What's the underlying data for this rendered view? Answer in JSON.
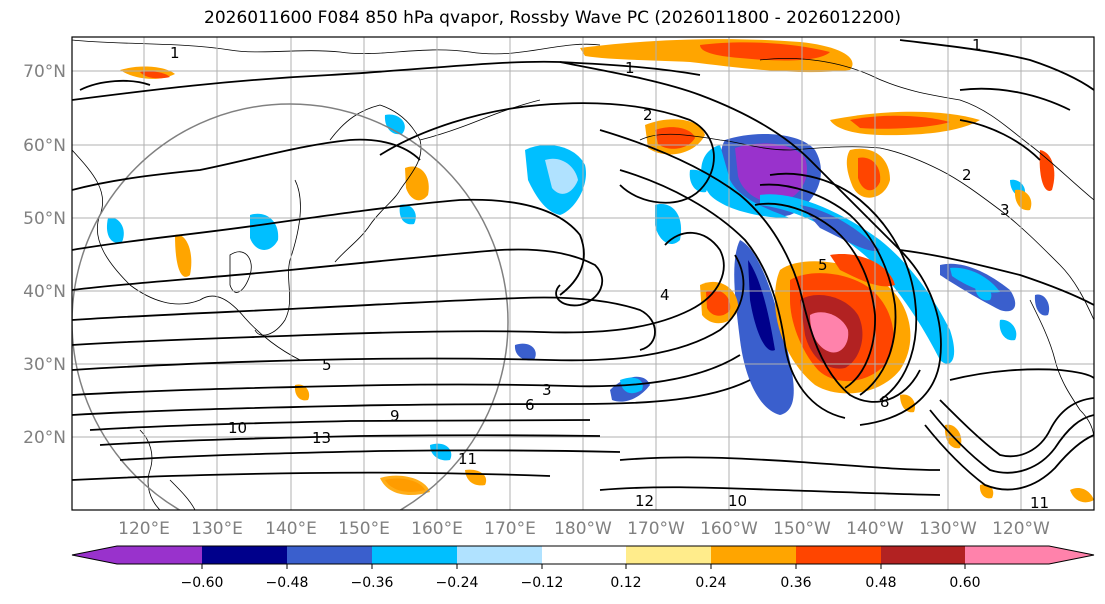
{
  "title": "2026011600 F084 850 hPa qvapor, Rossby Wave PC (2026011800 - 2026012200)",
  "lat_labels": [
    "70°N",
    "60°N",
    "50°N",
    "40°N",
    "30°N",
    "20°N"
  ],
  "lon_labels": [
    "120°E",
    "130°E",
    "140°E",
    "150°E",
    "160°E",
    "170°E",
    "180°W",
    "170°W",
    "160°W",
    "150°W",
    "140°W",
    "130°W",
    "120°W"
  ],
  "colorbar": {
    "tick_labels": [
      "−0.60",
      "−0.48",
      "−0.36",
      "−0.24",
      "−0.12",
      "0.12",
      "0.24",
      "0.36",
      "0.48",
      "0.60"
    ],
    "colors": [
      "#9932cc",
      "#00008b",
      "#3a5fcd",
      "#00bfff",
      "#b0e2ff",
      "#ffffff",
      "#ffec8b",
      "#ffa500",
      "#ff4500",
      "#b22222",
      "#ff82ab"
    ]
  },
  "contour_labels": [
    "1",
    "1",
    "1",
    "2",
    "2",
    "3",
    "3",
    "4",
    "5",
    "5",
    "6",
    "8",
    "9",
    "10",
    "10",
    "11",
    "11",
    "12",
    "13"
  ]
}
